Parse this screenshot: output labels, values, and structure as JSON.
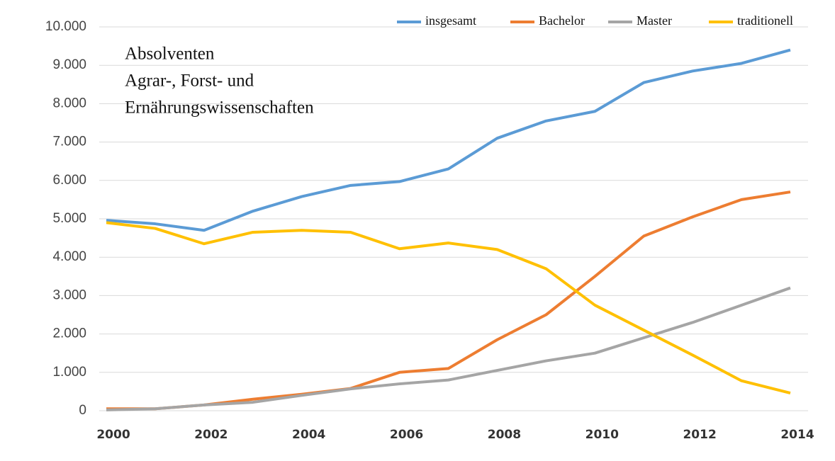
{
  "chart_data": {
    "type": "line",
    "title": [
      "Absolventen",
      "Agrar-, Forst- und",
      "Ernährungswissenschaften"
    ],
    "x": [
      2000,
      2001,
      2002,
      2003,
      2004,
      2005,
      2006,
      2007,
      2008,
      2009,
      2010,
      2011,
      2012,
      2013,
      2014
    ],
    "series": [
      {
        "name": "insgesamt",
        "color": "#5b9bd5",
        "values": [
          4960,
          4870,
          4700,
          5200,
          5580,
          5870,
          5970,
          6300,
          7100,
          7550,
          7800,
          8550,
          8850,
          9050,
          9400
        ]
      },
      {
        "name": "Bachelor",
        "color": "#ed7d31",
        "values": [
          50,
          50,
          150,
          300,
          430,
          580,
          1000,
          1100,
          1850,
          2500,
          3500,
          4550,
          5050,
          5500,
          5700
        ]
      },
      {
        "name": "Master",
        "color": "#a5a5a5",
        "values": [
          20,
          50,
          150,
          220,
          400,
          570,
          700,
          800,
          1050,
          1300,
          1500,
          1900,
          2300,
          2750,
          3200
        ]
      },
      {
        "name": "traditionell",
        "color": "#ffc000",
        "values": [
          4900,
          4750,
          4350,
          4650,
          4700,
          4650,
          4220,
          4370,
          4200,
          3700,
          2750,
          2100,
          1450,
          780,
          460
        ]
      }
    ],
    "xlim": [
      2000,
      2014
    ],
    "xticks": [
      2000,
      2002,
      2004,
      2006,
      2008,
      2010,
      2012,
      2014
    ],
    "ylim": [
      0,
      10000
    ],
    "yticks": [
      0,
      {
        "value": 1000,
        "label": "1.000"
      },
      {
        "value": 2000,
        "label": "2.000"
      },
      {
        "value": 3000,
        "label": "3.000"
      },
      {
        "value": 4000,
        "label": "4.000"
      },
      {
        "value": 5000,
        "label": "5.000"
      },
      {
        "value": 6000,
        "label": "6.000"
      },
      {
        "value": 7000,
        "label": "7.000"
      },
      {
        "value": 8000,
        "label": "8.000"
      },
      {
        "value": 9000,
        "label": "9.000"
      },
      {
        "value": 10000,
        "label": "10.000"
      }
    ],
    "grid": true,
    "legend": "top"
  }
}
